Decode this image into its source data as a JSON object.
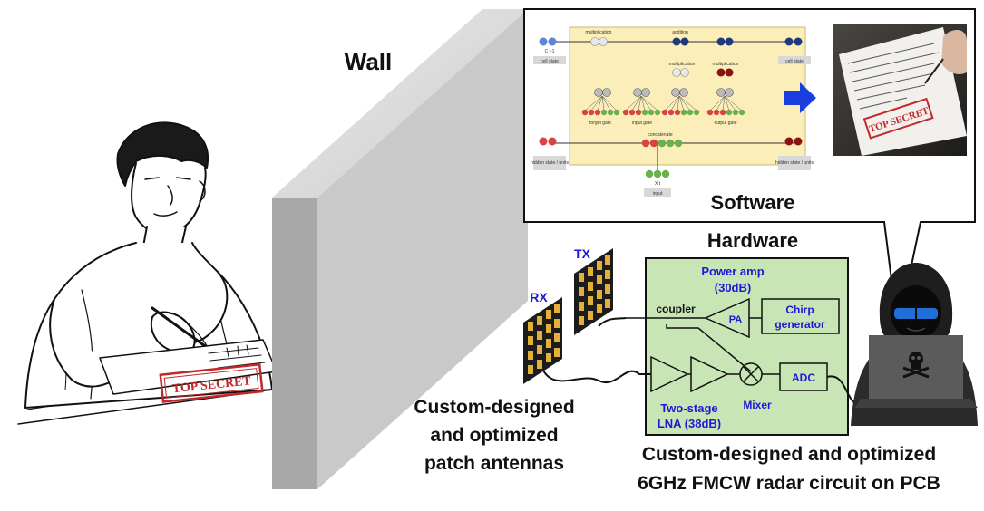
{
  "labels": {
    "wall": "Wall",
    "software": "Software",
    "hardware": "Hardware",
    "rx": "RX",
    "tx": "TX",
    "antennas_line1": "Custom-designed",
    "antennas_line2": "and optimized",
    "antennas_line3": "patch antennas",
    "pcb_line1": "Custom-designed and optimized",
    "pcb_line2": "6GHz FMCW radar circuit on PCB"
  },
  "circuit": {
    "power_amp_line1": "Power amp",
    "power_amp_line2": "(30dB)",
    "pa": "PA",
    "coupler": "coupler",
    "chirp_line1": "Chirp",
    "chirp_line2": "generator",
    "adc": "ADC",
    "mixer": "Mixer",
    "lna_line1": "Two-stage",
    "lna_line2": "LNA (38dB)"
  },
  "stamps": {
    "paper_stamp": "TOP SECRET",
    "photo_stamp": "TOP SECRET"
  },
  "lstm": {
    "cell_state_in": "C t-1",
    "cell_state_out": "cell state",
    "cell_state_in_label": "cell state",
    "hidden_in_label": "hidden state / units",
    "hidden_out_label": "hidden state / units",
    "input_label": "input",
    "x_label": "X t",
    "mult_1": "multiplication",
    "addition": "addition",
    "mult_2": "multiplication",
    "mult_3": "multiplication",
    "forget_gate": "forget gate",
    "input_gate": "input gate",
    "output_gate": "output gate",
    "concatenate": "concatenate"
  },
  "colors": {
    "text_dark": "#111111",
    "circuit_text": "#1a1ad6",
    "pcb_fill": "#c8e6b5",
    "lstm_fill": "#fbeeb8",
    "wall_face": "#cfcfcf",
    "wall_side": "#a3a3a3",
    "stamp_red": "#c0282c",
    "arrow_blue": "#1a3ee0"
  }
}
